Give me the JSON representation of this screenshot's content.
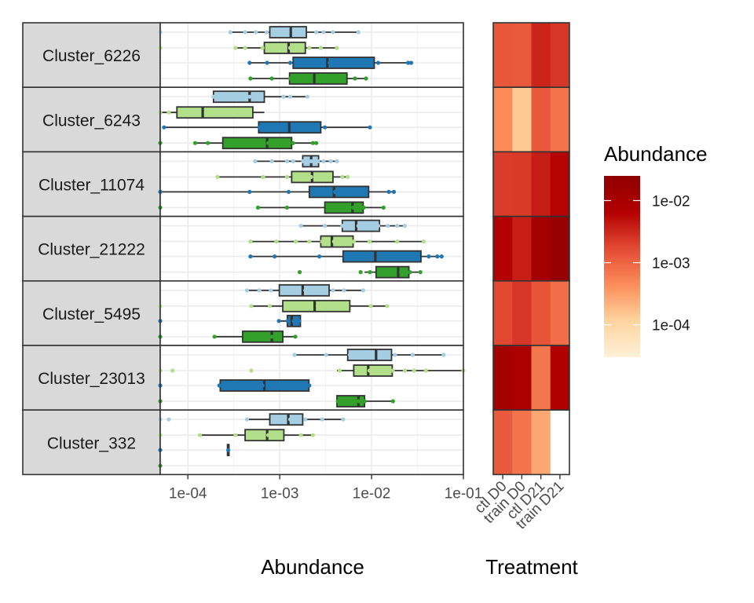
{
  "chart_data": [
    {
      "type": "boxplot",
      "xlabel": "Abundance",
      "ylabel": "",
      "x_scale": "log10",
      "xlim": [
        5e-05,
        0.1
      ],
      "x_ticks": [
        "1e-04",
        "1e-03",
        "1e-02",
        "1e-01"
      ],
      "x_tick_values": [
        0.0001,
        0.001,
        0.01,
        0.1
      ],
      "grid": true,
      "groups": [
        "ctl D0",
        "train D0",
        "ctl D21",
        "train D21"
      ],
      "group_colors": [
        "#a6cee3",
        "#b2df8a",
        "#1f78b4",
        "#33a02c"
      ],
      "clusters": [
        {
          "name": "Cluster_6226",
          "boxes": [
            {
              "group": "ctl D0",
              "whisker": [
                0.00029,
                0.0072
              ],
              "q1": 0.00078,
              "median": 0.00132,
              "q3": 0.00195,
              "points": [
                5e-05,
                0.00029,
                0.00042,
                0.00055,
                0.00072,
                0.001,
                0.0012,
                0.0025,
                0.003,
                0.0038,
                0.0072
              ]
            },
            {
              "group": "train D0",
              "whisker": [
                0.00033,
                0.0042
              ],
              "q1": 0.00068,
              "median": 0.00125,
              "q3": 0.0019,
              "points": [
                5e-05,
                0.00033,
                0.00042,
                0.00065,
                0.0013,
                0.0021,
                0.0028,
                0.0042
              ]
            },
            {
              "group": "ctl D21",
              "whisker": [
                0.00047,
                0.027
              ],
              "q1": 0.0014,
              "median": 0.0033,
              "q3": 0.0107,
              "points": [
                0.00047,
                0.00073,
                0.0013,
                0.0028,
                0.0035,
                0.0077,
                0.0118,
                0.025,
                0.027
              ]
            },
            {
              "group": "train D21",
              "whisker": [
                0.00048,
                0.0087
              ],
              "q1": 0.00128,
              "median": 0.00238,
              "q3": 0.0054,
              "points": [
                0.00048,
                0.00082,
                0.0013,
                0.0033,
                0.005,
                0.0066,
                0.0087
              ]
            }
          ]
        },
        {
          "name": "Cluster_6243",
          "boxes": [
            {
              "group": "ctl D0",
              "whisker": [
                0.00019,
                0.002
              ],
              "q1": 0.00019,
              "median": 0.00047,
              "q3": 0.00068,
              "points": [
                0.00019,
                0.00025,
                0.00047,
                0.00063,
                0.0011,
                0.0013,
                0.002
              ]
            },
            {
              "group": "train D0",
              "whisker": [
                5e-05,
                0.00068
              ],
              "q1": 7.6e-05,
              "median": 0.000145,
              "q3": 0.00051,
              "points": [
                5e-05,
                6.2e-05,
                0.000165,
                0.0003,
                0.00046
              ]
            },
            {
              "group": "ctl D21",
              "whisker": [
                5.5e-05,
                0.0096
              ],
              "q1": 0.00059,
              "median": 0.00127,
              "q3": 0.0028,
              "points": [
                5.5e-05,
                0.0006,
                0.00085,
                0.0014,
                0.0031,
                0.0096
              ]
            },
            {
              "group": "train D21",
              "whisker": [
                0.00012,
                0.0025
              ],
              "q1": 0.00024,
              "median": 0.00073,
              "q3": 0.00135,
              "points": [
                5e-05,
                0.00012,
                0.000165,
                0.00026,
                0.00075,
                0.0014,
                0.0023,
                0.0025
              ]
            }
          ]
        },
        {
          "name": "Cluster_11074",
          "boxes": [
            {
              "group": "ctl D0",
              "whisker": [
                0.00054,
                0.0042
              ],
              "q1": 0.00178,
              "median": 0.0022,
              "q3": 0.00265,
              "points": [
                0.00054,
                0.00082,
                0.0012,
                0.0014,
                0.0018,
                0.0022,
                0.0026,
                0.003,
                0.0036,
                0.0042
              ]
            },
            {
              "group": "train D0",
              "whisker": [
                0.00021,
                0.0055
              ],
              "q1": 0.00135,
              "median": 0.00225,
              "q3": 0.0038,
              "points": [
                0.00021,
                0.00066,
                0.0012,
                0.0015,
                0.0022,
                0.0032,
                0.0048,
                0.0055
              ]
            },
            {
              "group": "ctl D21",
              "whisker": [
                5e-05,
                0.0175
              ],
              "q1": 0.0021,
              "median": 0.0039,
              "q3": 0.0093,
              "points": [
                5e-05,
                0.00047,
                0.00125,
                0.0023,
                0.004,
                0.0073,
                0.0154,
                0.0175
              ]
            },
            {
              "group": "train D21",
              "whisker": [
                0.00058,
                0.0135
              ],
              "q1": 0.0031,
              "median": 0.0062,
              "q3": 0.0081,
              "points": [
                5e-05,
                0.00058,
                0.0012,
                0.0035,
                0.0063,
                0.0082,
                0.0135
              ]
            }
          ]
        },
        {
          "name": "Cluster_21222",
          "boxes": [
            {
              "group": "ctl D0",
              "whisker": [
                0.0017,
                0.023
              ],
              "q1": 0.0048,
              "median": 0.0068,
              "q3": 0.0122,
              "points": [
                0.0017,
                0.0031,
                0.0048,
                0.006,
                0.0072,
                0.0095,
                0.0118,
                0.015,
                0.019,
                0.023
              ]
            },
            {
              "group": "train D0",
              "whisker": [
                0.00048,
                0.037
              ],
              "q1": 0.0028,
              "median": 0.0037,
              "q3": 0.0063,
              "points": [
                0.00048,
                0.00092,
                0.0015,
                0.0021,
                0.0029,
                0.0039,
                0.0064,
                0.0095,
                0.019,
                0.037
              ]
            },
            {
              "group": "ctl D21",
              "whisker": [
                0.00048,
                0.058
              ],
              "q1": 0.0049,
              "median": 0.011,
              "q3": 0.0345,
              "points": [
                0.00048,
                0.00088,
                0.0027,
                0.0052,
                0.0083,
                0.012,
                0.017,
                0.025,
                0.042,
                0.052,
                0.058
              ]
            },
            {
              "group": "train D21",
              "whisker": [
                0.0084,
                0.034
              ],
              "q1": 0.0112,
              "median": 0.0195,
              "q3": 0.0255,
              "points": [
                0.00165,
                0.0076,
                0.0096,
                0.0135,
                0.021,
                0.0262,
                0.034
              ]
            }
          ]
        },
        {
          "name": "Cluster_5495",
          "boxes": [
            {
              "group": "ctl D0",
              "whisker": [
                0.00044,
                0.0081
              ],
              "q1": 0.00099,
              "median": 0.00178,
              "q3": 0.00345,
              "points": [
                0.00044,
                0.0006,
                0.0008,
                0.0011,
                0.0015,
                0.0019,
                0.0024,
                0.0028,
                0.0038,
                0.005,
                0.0081
              ]
            },
            {
              "group": "train D0",
              "whisker": [
                0.00049,
                0.0148
              ],
              "q1": 0.00108,
              "median": 0.0024,
              "q3": 0.0058,
              "points": [
                5e-05,
                0.00049,
                0.00078,
                0.0012,
                0.0019,
                0.0026,
                0.0032,
                0.0052,
                0.0098,
                0.0148
              ]
            },
            {
              "group": "ctl D21",
              "whisker": [
                0.00098,
                0.00168
              ],
              "q1": 0.00121,
              "median": 0.00135,
              "q3": 0.00168,
              "points": [
                5e-05,
                0.00098,
                0.00122,
                0.00142,
                0.00162
              ]
            },
            {
              "group": "train D21",
              "whisker": [
                0.000195,
                0.00148
              ],
              "q1": 0.000395,
              "median": 0.00082,
              "q3": 0.00108,
              "points": [
                5e-05,
                0.000195,
                0.00082,
                0.00148
              ]
            }
          ]
        },
        {
          "name": "Cluster_23013",
          "boxes": [
            {
              "group": "ctl D0",
              "whisker": [
                0.00145,
                0.061
              ],
              "q1": 0.0055,
              "median": 0.0112,
              "q3": 0.0165,
              "points": [
                0.00145,
                0.0032,
                0.0058,
                0.0078,
                0.0098,
                0.0135,
                0.018,
                0.028,
                0.061
              ]
            },
            {
              "group": "train D0",
              "whisker": [
                0.0042,
                0.1
              ],
              "q1": 0.0064,
              "median": 0.0092,
              "q3": 0.0168,
              "points": [
                5e-05,
                6.8e-05,
                0.00049,
                0.0045,
                0.0071,
                0.0095,
                0.0115,
                0.017,
                0.023,
                0.029,
                0.039,
                0.1
              ]
            },
            {
              "group": "ctl D21",
              "whisker": [
                0.000225,
                0.0022
              ],
              "q1": 0.000225,
              "median": 0.00068,
              "q3": 0.00208,
              "points": [
                5e-05,
                0.00022,
                0.00065,
                0.0021
              ]
            },
            {
              "group": "train D21",
              "whisker": [
                0.0042,
                0.0171
              ],
              "q1": 0.0042,
              "median": 0.0072,
              "q3": 0.0084,
              "points": [
                5e-05,
                0.0043,
                0.0072,
                0.0084,
                0.0171
              ]
            }
          ]
        },
        {
          "name": "Cluster_332",
          "boxes": [
            {
              "group": "ctl D0",
              "whisker": [
                0.00044,
                0.0049
              ],
              "q1": 0.00078,
              "median": 0.00124,
              "q3": 0.00178,
              "points": [
                5e-05,
                6.2e-05,
                0.00044,
                0.00085,
                0.0011,
                0.0013,
                0.0016,
                0.0019,
                0.0029,
                0.0049
              ]
            },
            {
              "group": "train D0",
              "whisker": [
                0.000135,
                0.0023
              ],
              "q1": 0.00042,
              "median": 0.00073,
              "q3": 0.00111,
              "points": [
                5e-05,
                0.000135,
                0.00033,
                0.00048,
                0.00075,
                0.00098,
                0.0017,
                0.0023
              ]
            },
            {
              "group": "ctl D21",
              "whisker": [
                0.00027,
                0.00028
              ],
              "q1": 0.00027,
              "median": 0.000275,
              "q3": 0.00028,
              "points": [
                5e-05,
                0.000275
              ]
            },
            {
              "group": "train D21",
              "whisker": null,
              "q1": null,
              "median": null,
              "q3": null,
              "points": [
                5e-05
              ]
            }
          ]
        }
      ]
    },
    {
      "type": "heatmap",
      "xlabel": "Treatment",
      "x_categories": [
        "ctl D0",
        "train D0",
        "ctl D21",
        "train D21"
      ],
      "y_categories": [
        "Cluster_6226",
        "Cluster_6243",
        "Cluster_11074",
        "Cluster_21222",
        "Cluster_5495",
        "Cluster_23013",
        "Cluster_332"
      ],
      "values": [
        [
          0.00132,
          0.00125,
          0.0033,
          0.00238
        ],
        [
          0.00047,
          0.000145,
          0.00127,
          0.00073
        ],
        [
          0.0022,
          0.00225,
          0.0039,
          0.0062
        ],
        [
          0.0068,
          0.0037,
          0.011,
          0.0195
        ],
        [
          0.00178,
          0.0024,
          0.00135,
          0.00082
        ],
        [
          0.0112,
          0.0092,
          0.00068,
          0.0072
        ],
        [
          0.00124,
          0.00073,
          0.000275,
          null
        ]
      ],
      "legend": {
        "title": "Abundance",
        "scale": "log10",
        "range": [
          3e-05,
          0.025
        ],
        "ticks": [
          "1e-04",
          "1e-03",
          "1e-02"
        ],
        "tick_values": [
          0.0001,
          0.001,
          0.01
        ],
        "colors": [
          "#fff0d8",
          "#fdd49e",
          "#fc8d59",
          "#e34a33",
          "#b30000",
          "#900000"
        ]
      }
    }
  ]
}
